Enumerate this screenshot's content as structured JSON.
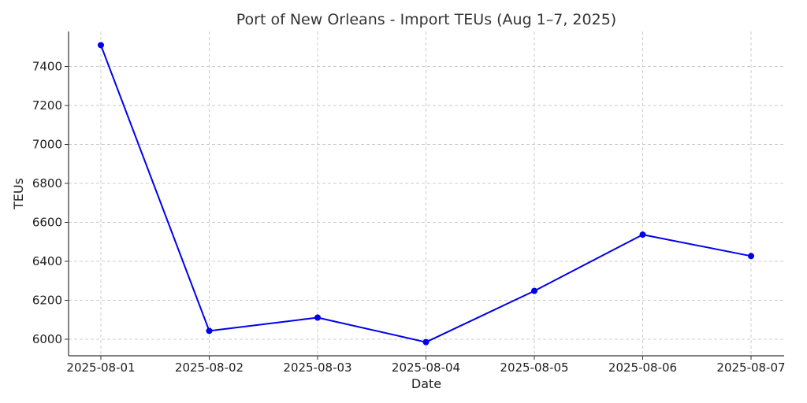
{
  "chart_data": {
    "type": "line",
    "title": "Port of New Orleans - Import TEUs (Aug 1–7, 2025)",
    "xlabel": "Date",
    "ylabel": "TEUs",
    "categories": [
      "2025-08-01",
      "2025-08-02",
      "2025-08-03",
      "2025-08-04",
      "2025-08-05",
      "2025-08-06",
      "2025-08-07"
    ],
    "series": [
      {
        "values": [
          7510,
          6043,
          6111,
          5985,
          6248,
          6537,
          6427
        ],
        "color": "#0000ee"
      }
    ],
    "ylim": [
      5915,
      7580
    ],
    "yticks": [
      6000,
      6200,
      6400,
      6600,
      6800,
      7000,
      7200,
      7400
    ],
    "grid": true
  }
}
